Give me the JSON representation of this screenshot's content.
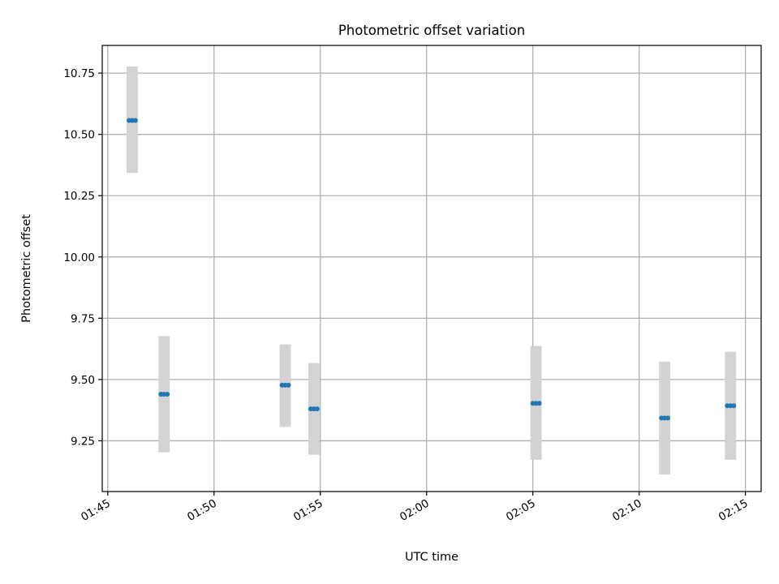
{
  "chart_data": {
    "type": "scatter",
    "title": "Photometric offset variation",
    "xlabel": "UTC time",
    "ylabel": "Photometric offset",
    "grid": true,
    "xlim": [
      44.74,
      75.74
    ],
    "ylim": [
      9.043,
      10.863
    ],
    "x_unit": "minutes after 01:00 UTC",
    "xticks": [
      {
        "value": 45,
        "label": "01:45"
      },
      {
        "value": 50,
        "label": "01:50"
      },
      {
        "value": 55,
        "label": "01:55"
      },
      {
        "value": 60,
        "label": "02:00"
      },
      {
        "value": 65,
        "label": "02:05"
      },
      {
        "value": 70,
        "label": "02:10"
      },
      {
        "value": 75,
        "label": "02:15"
      }
    ],
    "yticks": [
      {
        "value": 9.25,
        "label": "9.25"
      },
      {
        "value": 9.5,
        "label": "9.50"
      },
      {
        "value": 9.75,
        "label": "9.75"
      },
      {
        "value": 10.0,
        "label": "10.00"
      },
      {
        "value": 10.25,
        "label": "10.25"
      },
      {
        "value": 10.5,
        "label": "10.50"
      },
      {
        "value": 10.75,
        "label": "10.75"
      }
    ],
    "colors": {
      "points": "#1f77b4",
      "error_bars": "#d3d3d3",
      "grid": "#b0b0b0"
    },
    "groups": [
      {
        "x": [
          46.0,
          46.15,
          46.3
        ],
        "y": 10.557,
        "ymin": 10.343,
        "ymax": 10.777
      },
      {
        "x": [
          47.5,
          47.65,
          47.8
        ],
        "y": 9.44,
        "ymin": 9.203,
        "ymax": 9.677
      },
      {
        "x": [
          53.2,
          53.35,
          53.5
        ],
        "y": 9.477,
        "ymin": 9.307,
        "ymax": 9.643
      },
      {
        "x": [
          54.55,
          54.7,
          54.85
        ],
        "y": 9.38,
        "ymin": 9.193,
        "ymax": 9.567
      },
      {
        "x": [
          65.0,
          65.15,
          65.3
        ],
        "y": 9.403,
        "ymin": 9.173,
        "ymax": 9.637
      },
      {
        "x": [
          71.05,
          71.2,
          71.35
        ],
        "y": 9.343,
        "ymin": 9.113,
        "ymax": 9.573
      },
      {
        "x": [
          74.15,
          74.3,
          74.45
        ],
        "y": 9.393,
        "ymin": 9.173,
        "ymax": 9.613
      }
    ]
  }
}
